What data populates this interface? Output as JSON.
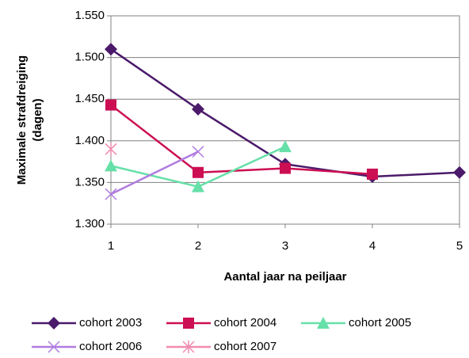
{
  "chart_data": {
    "type": "line",
    "ylabel": [
      "Maximale strafdreiging",
      "(dagen)"
    ],
    "xlabel": "Aantal jaar na peiljaar",
    "x": [
      1,
      2,
      3,
      4,
      5
    ],
    "xlim": [
      1,
      5
    ],
    "xticks": [
      1,
      2,
      3,
      4,
      5
    ],
    "ylim": [
      1300,
      1550
    ],
    "yticks": [
      {
        "value": 1300,
        "label": "1.300"
      },
      {
        "value": 1350,
        "label": "1.350"
      },
      {
        "value": 1400,
        "label": "1.400"
      },
      {
        "value": 1450,
        "label": "1.450"
      },
      {
        "value": 1500,
        "label": "1.500"
      },
      {
        "value": 1550,
        "label": "1.550"
      }
    ],
    "grid": true,
    "legend": "bottom",
    "series": [
      {
        "name": "cohort 2003",
        "color": "#4b1a6b",
        "marker": "diamond",
        "values": [
          1510,
          1438,
          1372,
          1357,
          1362
        ]
      },
      {
        "name": "cohort 2004",
        "color": "#cc0e52",
        "marker": "square",
        "values": [
          1443,
          1362,
          1367,
          1360,
          null
        ]
      },
      {
        "name": "cohort 2005",
        "color": "#66e0a8",
        "marker": "triangle",
        "values": [
          1370,
          1345,
          1393,
          null,
          null
        ]
      },
      {
        "name": "cohort 2006",
        "color": "#b07ce0",
        "marker": "x",
        "values": [
          1336,
          1387,
          null,
          null,
          null
        ]
      },
      {
        "name": "cohort 2007",
        "color": "#f08cb0",
        "marker": "asterisk",
        "values": [
          1390,
          null,
          null,
          null,
          null
        ]
      }
    ]
  }
}
